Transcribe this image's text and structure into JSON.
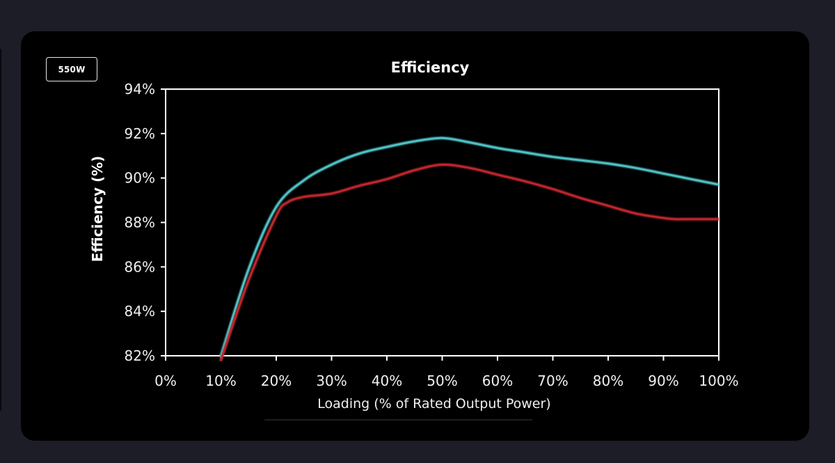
{
  "badge": {
    "label": "550W"
  },
  "chart_data": {
    "type": "line",
    "title": "Efficiency",
    "xlabel": "Loading (% of Rated Output Power)",
    "ylabel": "Efficiency (%)",
    "xlim": [
      0,
      100
    ],
    "ylim": [
      82,
      94
    ],
    "x_ticks": [
      "0%",
      "10%",
      "20%",
      "30%",
      "40%",
      "50%",
      "60%",
      "70%",
      "80%",
      "90%",
      "100%"
    ],
    "y_ticks": [
      "94%",
      "92%",
      "90%",
      "88%",
      "86%",
      "84%",
      "82%"
    ],
    "grid": false,
    "legend": "none",
    "series": [
      {
        "color": "#4ec3c6",
        "x": [
          10,
          15,
          20,
          25,
          30,
          35,
          40,
          45,
          50,
          55,
          60,
          65,
          70,
          75,
          80,
          85,
          90,
          95,
          100
        ],
        "y": [
          82.0,
          85.9,
          88.7,
          89.9,
          90.6,
          91.1,
          91.4,
          91.65,
          91.8,
          91.6,
          91.35,
          91.15,
          90.95,
          90.8,
          90.65,
          90.45,
          90.2,
          89.95,
          89.7
        ]
      },
      {
        "color": "#c0262c",
        "x": [
          10,
          15,
          20,
          22,
          25,
          30,
          35,
          40,
          45,
          50,
          55,
          60,
          65,
          70,
          75,
          80,
          85,
          90,
          92,
          95,
          100
        ],
        "y": [
          81.8,
          85.4,
          88.3,
          88.9,
          89.15,
          89.3,
          89.65,
          89.95,
          90.35,
          90.6,
          90.45,
          90.15,
          89.85,
          89.5,
          89.1,
          88.75,
          88.4,
          88.2,
          88.15,
          88.15,
          88.15
        ]
      }
    ]
  }
}
